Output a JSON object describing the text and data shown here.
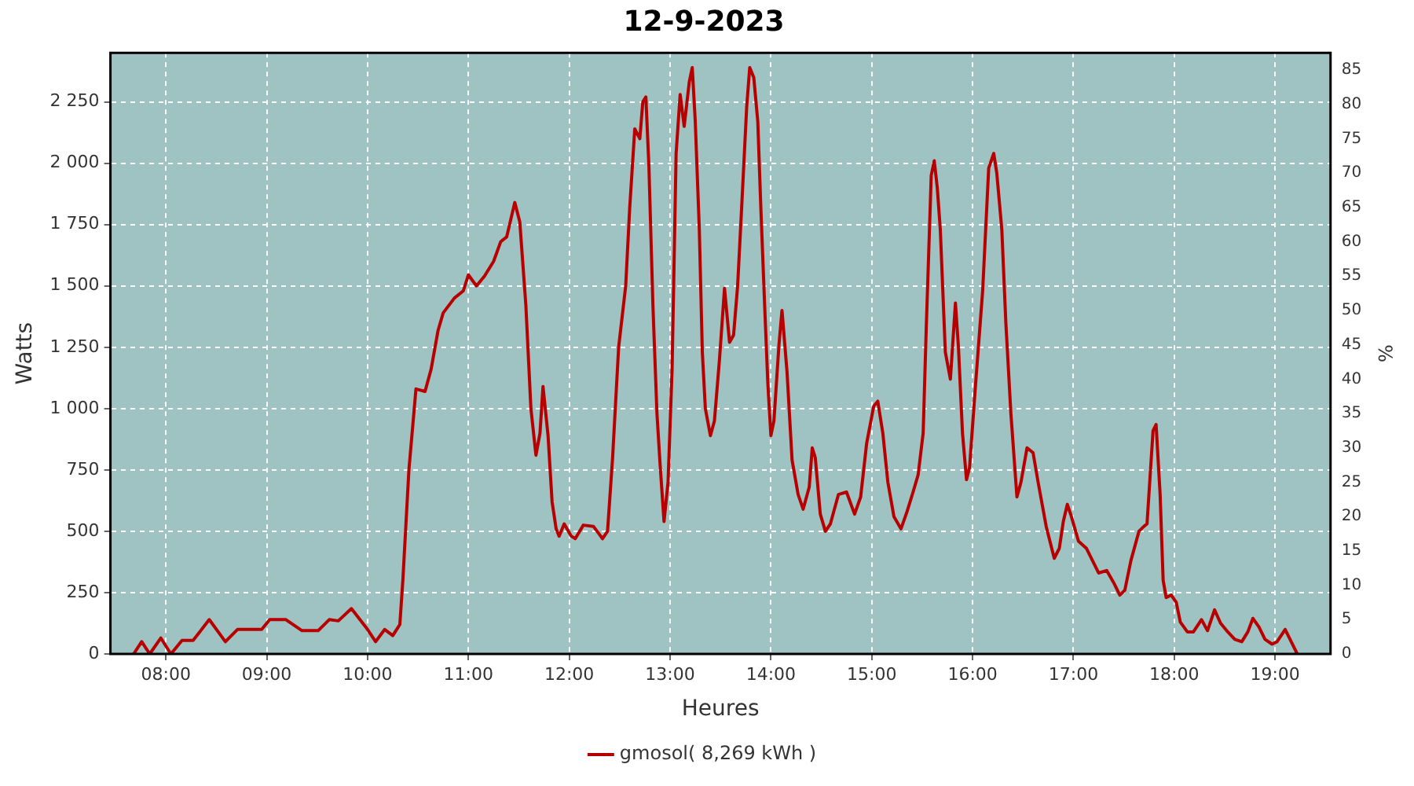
{
  "chart_data": {
    "type": "line",
    "title": "12-9-2023",
    "xlabel": "Heures",
    "ylabel": "Watts",
    "y2label": "%",
    "xlim": [
      7.45,
      19.55
    ],
    "xticks": [
      {
        "value": 8,
        "label": "08:00"
      },
      {
        "value": 9,
        "label": "09:00"
      },
      {
        "value": 10,
        "label": "10:00"
      },
      {
        "value": 11,
        "label": "11:00"
      },
      {
        "value": 12,
        "label": "12:00"
      },
      {
        "value": 13,
        "label": "13:00"
      },
      {
        "value": 14,
        "label": "14:00"
      },
      {
        "value": 15,
        "label": "15:00"
      },
      {
        "value": 16,
        "label": "16:00"
      },
      {
        "value": 17,
        "label": "17:00"
      },
      {
        "value": 18,
        "label": "18:00"
      },
      {
        "value": 19,
        "label": "19:00"
      }
    ],
    "ylim": [
      0,
      2450
    ],
    "yticks": [
      0,
      250,
      500,
      750,
      {
        "value": 1000,
        "label": "1 000"
      },
      {
        "value": 1250,
        "label": "1 250"
      },
      {
        "value": 1500,
        "label": "1 500"
      },
      {
        "value": 1750,
        "label": "1 750"
      },
      {
        "value": 2000,
        "label": "2 000"
      },
      {
        "value": 2250,
        "label": "2 250"
      }
    ],
    "y2lim": [
      0,
      87.5
    ],
    "y2ticks": [
      0,
      5,
      10,
      15,
      20,
      25,
      30,
      35,
      40,
      45,
      50,
      55,
      60,
      65,
      70,
      75,
      80,
      85
    ],
    "grid": true,
    "legend": "bottom",
    "marker": "none",
    "line_style": "solid",
    "series": [
      {
        "name": "gmosol( 8,269 kWh )",
        "color": "#b80000",
        "x": [
          7.68,
          7.76,
          7.84,
          7.95,
          8.05,
          8.16,
          8.27,
          8.43,
          8.59,
          8.71,
          8.95,
          9.03,
          9.19,
          9.35,
          9.51,
          9.62,
          9.71,
          9.84,
          10.0,
          10.08,
          10.17,
          10.25,
          10.32,
          10.35,
          10.41,
          10.48,
          10.57,
          10.63,
          10.7,
          10.75,
          10.86,
          10.95,
          11.0,
          11.08,
          11.16,
          11.25,
          11.32,
          11.38,
          11.46,
          11.51,
          11.57,
          11.62,
          11.67,
          11.71,
          11.74,
          11.79,
          11.83,
          11.87,
          11.9,
          11.95,
          12.02,
          12.06,
          12.14,
          12.24,
          12.33,
          12.38,
          12.43,
          12.49,
          12.56,
          12.6,
          12.65,
          12.7,
          12.73,
          12.76,
          12.79,
          12.83,
          12.87,
          12.9,
          12.94,
          12.98,
          13.02,
          13.06,
          13.1,
          13.14,
          13.19,
          13.22,
          13.25,
          13.29,
          13.32,
          13.35,
          13.4,
          13.44,
          13.49,
          13.54,
          13.59,
          13.63,
          13.67,
          13.71,
          13.76,
          13.79,
          13.83,
          13.87,
          13.9,
          13.94,
          13.97,
          14.0,
          14.03,
          14.08,
          14.11,
          14.16,
          14.21,
          14.27,
          14.32,
          14.38,
          14.41,
          14.44,
          14.49,
          14.54,
          14.59,
          14.67,
          14.75,
          14.83,
          14.89,
          14.95,
          15.02,
          15.06,
          15.11,
          15.16,
          15.22,
          15.29,
          15.35,
          15.41,
          15.46,
          15.51,
          15.54,
          15.59,
          15.62,
          15.65,
          15.68,
          15.73,
          15.78,
          15.83,
          15.86,
          15.9,
          15.94,
          15.97,
          16.03,
          16.1,
          16.16,
          16.21,
          16.24,
          16.29,
          16.33,
          16.38,
          16.44,
          16.48,
          16.54,
          16.6,
          16.65,
          16.73,
          16.81,
          16.86,
          16.9,
          16.94,
          16.98,
          17.05,
          17.13,
          17.19,
          17.25,
          17.33,
          17.4,
          17.46,
          17.51,
          17.57,
          17.65,
          17.7,
          17.73,
          17.76,
          17.79,
          17.82,
          17.86,
          17.89,
          17.92,
          17.97,
          18.02,
          18.06,
          18.13,
          18.19,
          18.27,
          18.33,
          18.4,
          18.46,
          18.52,
          18.6,
          18.67,
          18.73,
          18.78,
          18.84,
          18.9,
          18.97,
          19.02,
          19.1,
          19.16,
          19.22
        ],
        "values": [
          0,
          50,
          0,
          65,
          0,
          55,
          55,
          140,
          50,
          100,
          100,
          140,
          140,
          95,
          95,
          140,
          135,
          185,
          100,
          50,
          100,
          75,
          120,
          300,
          750,
          1080,
          1070,
          1160,
          1320,
          1390,
          1450,
          1480,
          1545,
          1500,
          1540,
          1600,
          1680,
          1700,
          1840,
          1760,
          1420,
          1000,
          810,
          900,
          1090,
          890,
          620,
          510,
          480,
          530,
          480,
          470,
          525,
          520,
          470,
          500,
          800,
          1250,
          1500,
          1820,
          2140,
          2100,
          2250,
          2270,
          1990,
          1420,
          980,
          780,
          540,
          700,
          1160,
          2040,
          2280,
          2150,
          2330,
          2390,
          2170,
          1730,
          1230,
          1000,
          890,
          950,
          1200,
          1490,
          1270,
          1300,
          1500,
          1820,
          2230,
          2390,
          2350,
          2170,
          1820,
          1400,
          1100,
          890,
          950,
          1260,
          1400,
          1150,
          790,
          650,
          590,
          680,
          840,
          800,
          570,
          500,
          530,
          650,
          660,
          570,
          640,
          860,
          1010,
          1030,
          900,
          700,
          560,
          510,
          580,
          660,
          730,
          900,
          1320,
          1950,
          2010,
          1900,
          1730,
          1230,
          1120,
          1430,
          1250,
          900,
          710,
          760,
          1100,
          1480,
          1980,
          2040,
          1960,
          1730,
          1350,
          980,
          640,
          700,
          840,
          820,
          700,
          520,
          390,
          430,
          540,
          610,
          560,
          460,
          430,
          380,
          330,
          340,
          290,
          240,
          260,
          380,
          500,
          520,
          530,
          720,
          910,
          935,
          650,
          300,
          230,
          240,
          210,
          130,
          90,
          90,
          140,
          95,
          180,
          125,
          95,
          60,
          50,
          90,
          145,
          110,
          60,
          40,
          50,
          100,
          50,
          0
        ]
      }
    ]
  }
}
